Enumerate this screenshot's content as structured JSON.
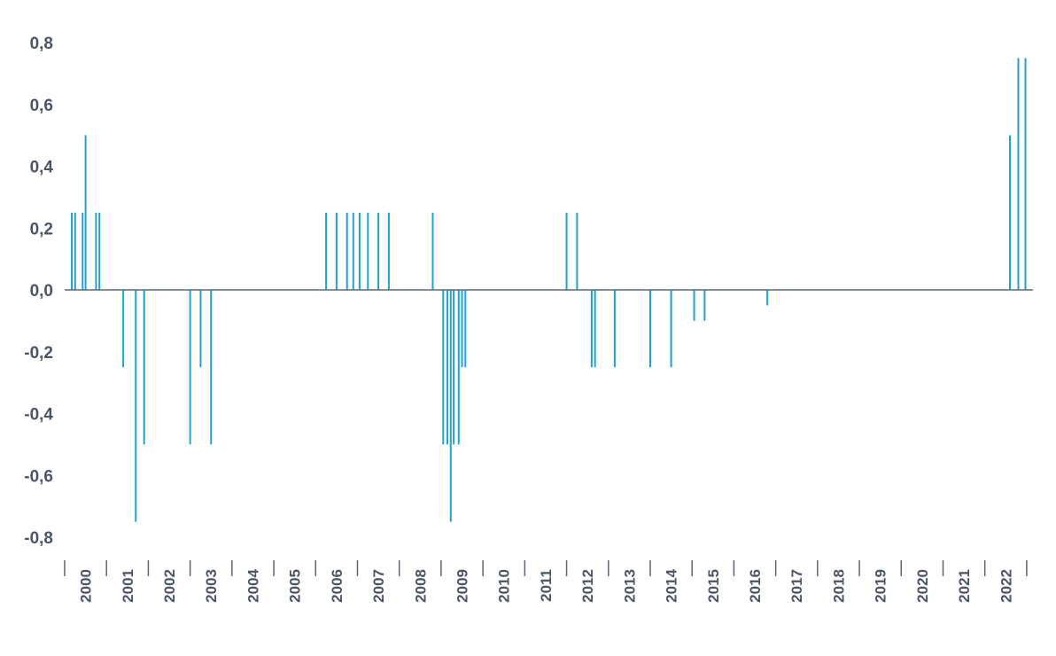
{
  "chart_data": {
    "type": "bar",
    "title": "",
    "xlabel": "",
    "ylabel": "",
    "ylim": [
      -0.8,
      0.8
    ],
    "y_ticks": [
      "0,8",
      "0,6",
      "0,4",
      "0,2",
      "0,0",
      "-0,2",
      "-0,4",
      "-0,6",
      "-0,8"
    ],
    "y_tick_values": [
      0.8,
      0.6,
      0.4,
      0.2,
      0.0,
      -0.2,
      -0.4,
      -0.6,
      -0.8
    ],
    "x_range": [
      1999.7,
      2022.85
    ],
    "year_labels": [
      "2000",
      "2001",
      "2002",
      "2003",
      "2004",
      "2005",
      "2006",
      "2007",
      "2008",
      "2009",
      "2010",
      "2011",
      "2012",
      "2013",
      "2014",
      "2015",
      "2016",
      "2017",
      "2018",
      "2019",
      "2020",
      "2021",
      "2022"
    ],
    "grid": false,
    "legend": "none",
    "bar_color": "#1fa2cc",
    "axis_color": "#5b6675",
    "text_color": "#4a5566",
    "series": [
      {
        "x": [
          1999.87,
          1999.95,
          2000.13,
          2000.2,
          2000.45,
          2000.53,
          2001.1,
          2001.4,
          2001.6,
          2002.7,
          2002.95,
          2003.2,
          2005.95,
          2006.2,
          2006.45,
          2006.6,
          2006.75,
          2006.95,
          2007.2,
          2007.45,
          2008.5,
          2008.75,
          2008.85,
          2008.93,
          2009.0,
          2009.12,
          2009.2,
          2009.28,
          2011.7,
          2011.95,
          2012.3,
          2012.38,
          2012.85,
          2013.7,
          2014.2,
          2014.75,
          2015.0,
          2016.5,
          2022.3,
          2022.5,
          2022.67
        ],
        "values": [
          0.25,
          0.25,
          0.25,
          0.5,
          0.25,
          0.25,
          -0.25,
          -0.75,
          -0.5,
          -0.5,
          -0.25,
          -0.5,
          0.25,
          0.25,
          0.25,
          0.25,
          0.25,
          0.25,
          0.25,
          0.25,
          0.25,
          -0.5,
          -0.5,
          -0.75,
          -0.5,
          -0.5,
          -0.25,
          -0.25,
          0.25,
          0.25,
          -0.25,
          -0.25,
          -0.25,
          -0.25,
          -0.25,
          -0.1,
          -0.1,
          -0.05,
          0.5,
          0.75,
          0.75
        ]
      }
    ]
  }
}
